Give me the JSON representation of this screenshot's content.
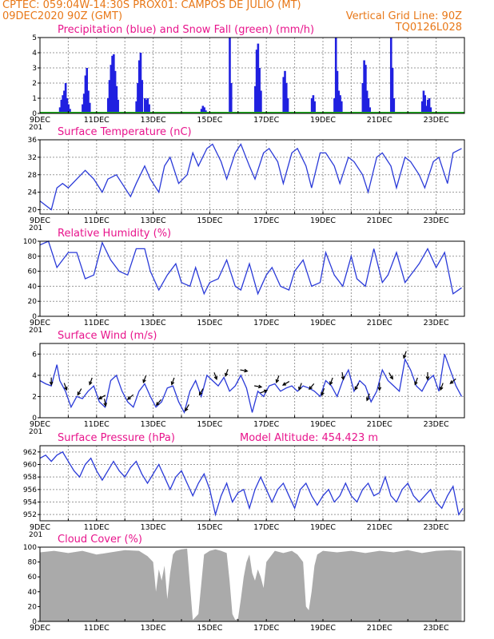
{
  "header": {
    "line1": "CPTEC:   059:04W-14:30S   PROX01: CAMPOS DE JULIO (MT)",
    "line2_left": "09DEC2020 90Z (GMT)",
    "line2_right": "Vertical Grid Line: 90Z",
    "line3_right": "TQ0126L028"
  },
  "colors": {
    "header": "#e87818",
    "panel_title": "#e8148c",
    "precip": "#2020e0",
    "snow": "#20b020",
    "line": "#2a3ad8",
    "cloud": "#aaaaaa"
  },
  "chart_data": [
    {
      "id": "precip",
      "type": "bar",
      "title": "Precipitation (blue) and Snow Fall (green) (mm/h)",
      "ylim": [
        0,
        5
      ],
      "yticks": [
        "0",
        "1",
        "2",
        "3",
        "4",
        "5"
      ],
      "x_labels": [
        "9DEC",
        "11DEC",
        "13DEC",
        "15DEC",
        "17DEC",
        "19DEC",
        "21DEC",
        "23DEC"
      ],
      "x_overlap_label": "201",
      "grid": true,
      "series": [
        {
          "color": "#2020e0",
          "values": [
            [
              9.7,
              0.4
            ],
            [
              9.75,
              0.9
            ],
            [
              9.8,
              1.2
            ],
            [
              9.85,
              1.5
            ],
            [
              9.9,
              2.0
            ],
            [
              9.95,
              1.0
            ],
            [
              10.0,
              0.6
            ],
            [
              10.05,
              0.3
            ],
            [
              10.5,
              0.6
            ],
            [
              10.55,
              1.3
            ],
            [
              10.6,
              2.5
            ],
            [
              10.65,
              3.0
            ],
            [
              10.7,
              1.5
            ],
            [
              10.75,
              0.7
            ],
            [
              11.4,
              1.0
            ],
            [
              11.45,
              2.2
            ],
            [
              11.5,
              3.2
            ],
            [
              11.55,
              3.8
            ],
            [
              11.6,
              3.9
            ],
            [
              11.65,
              2.8
            ],
            [
              11.7,
              1.8
            ],
            [
              11.75,
              0.9
            ],
            [
              12.4,
              0.8
            ],
            [
              12.45,
              2.0
            ],
            [
              12.5,
              3.5
            ],
            [
              12.55,
              4.0
            ],
            [
              12.6,
              2.2
            ],
            [
              12.7,
              1.0
            ],
            [
              12.75,
              0.9
            ],
            [
              12.8,
              1.0
            ],
            [
              12.85,
              0.6
            ],
            [
              14.6,
              0.1
            ],
            [
              14.7,
              0.3
            ],
            [
              14.75,
              0.5
            ],
            [
              14.8,
              0.4
            ],
            [
              14.85,
              0.2
            ],
            [
              15.7,
              5.0
            ],
            [
              15.75,
              2.0
            ],
            [
              16.6,
              1.8
            ],
            [
              16.65,
              4.2
            ],
            [
              16.7,
              4.6
            ],
            [
              16.75,
              3.0
            ],
            [
              16.8,
              1.5
            ],
            [
              17.6,
              2.4
            ],
            [
              17.65,
              2.8
            ],
            [
              17.7,
              2.0
            ],
            [
              17.75,
              1.0
            ],
            [
              18.6,
              1.0
            ],
            [
              18.65,
              1.2
            ],
            [
              18.7,
              0.8
            ],
            [
              19.4,
              1.0
            ],
            [
              19.45,
              5.0
            ],
            [
              19.5,
              2.8
            ],
            [
              19.55,
              1.5
            ],
            [
              19.6,
              1.2
            ],
            [
              19.65,
              0.8
            ],
            [
              20.4,
              2.0
            ],
            [
              20.45,
              3.5
            ],
            [
              20.5,
              3.2
            ],
            [
              20.55,
              1.5
            ],
            [
              20.6,
              1.0
            ],
            [
              20.65,
              0.4
            ],
            [
              21.4,
              5.0
            ],
            [
              21.45,
              3.0
            ],
            [
              21.5,
              1.0
            ],
            [
              22.5,
              0.8
            ],
            [
              22.55,
              1.5
            ],
            [
              22.6,
              1.2
            ],
            [
              22.65,
              0.5
            ],
            [
              22.7,
              0.9
            ],
            [
              22.75,
              1.0
            ],
            [
              22.8,
              0.4
            ]
          ]
        },
        {
          "color": "#20b020",
          "values": [
            [
              9.0,
              0.04
            ],
            [
              23.9,
              0.04
            ]
          ]
        }
      ]
    },
    {
      "id": "temp",
      "type": "line",
      "title": "Surface Temperature (nC)",
      "ylim": [
        19,
        36
      ],
      "yticks": [
        "20",
        "24",
        "28",
        "32",
        "36"
      ],
      "x_labels": [
        "9DEC",
        "11DEC",
        "13DEC",
        "15DEC",
        "17DEC",
        "19DEC",
        "21DEC",
        "23DEC"
      ],
      "x_overlap_label": "201",
      "grid": true,
      "x": [
        9.0,
        9.2,
        9.4,
        9.6,
        9.8,
        10.0,
        10.3,
        10.6,
        10.9,
        11.2,
        11.4,
        11.7,
        11.9,
        12.2,
        12.4,
        12.7,
        12.9,
        13.2,
        13.4,
        13.6,
        13.9,
        14.2,
        14.4,
        14.6,
        14.9,
        15.1,
        15.4,
        15.6,
        15.9,
        16.1,
        16.4,
        16.6,
        16.9,
        17.1,
        17.4,
        17.6,
        17.9,
        18.1,
        18.4,
        18.6,
        18.9,
        19.1,
        19.4,
        19.6,
        19.9,
        20.1,
        20.4,
        20.6,
        20.9,
        21.1,
        21.4,
        21.6,
        21.9,
        22.1,
        22.4,
        22.6,
        22.9,
        23.1,
        23.4,
        23.6,
        23.9
      ],
      "y": [
        22,
        21,
        20,
        25,
        26,
        25,
        27,
        29,
        27,
        24,
        27,
        28,
        26,
        23,
        26,
        30,
        27,
        24,
        30,
        32,
        26,
        28,
        33,
        30,
        34,
        35,
        31,
        27,
        33,
        35,
        30,
        27,
        33,
        34,
        31,
        26,
        33,
        34,
        30,
        25,
        33,
        33,
        30,
        26,
        32,
        31,
        28,
        24,
        32,
        33,
        30,
        25,
        32,
        31,
        28,
        25,
        31,
        32,
        26,
        33,
        34
      ]
    },
    {
      "id": "rh",
      "type": "line",
      "title": "Relative Humidity (%)",
      "ylim": [
        0,
        100
      ],
      "yticks": [
        "0",
        "20",
        "40",
        "60",
        "80",
        "100"
      ],
      "x_labels": [
        "9DEC",
        "11DEC",
        "13DEC",
        "15DEC",
        "17DEC",
        "19DEC",
        "21DEC",
        "23DEC"
      ],
      "x_overlap_label": "201",
      "grid": true,
      "x": [
        9.0,
        9.3,
        9.6,
        9.8,
        10.0,
        10.3,
        10.6,
        10.9,
        11.2,
        11.5,
        11.8,
        12.1,
        12.4,
        12.7,
        12.9,
        13.2,
        13.5,
        13.8,
        14.0,
        14.3,
        14.5,
        14.8,
        15.0,
        15.3,
        15.6,
        15.9,
        16.1,
        16.4,
        16.7,
        17.0,
        17.2,
        17.5,
        17.8,
        18.0,
        18.3,
        18.6,
        18.9,
        19.1,
        19.4,
        19.7,
        20.0,
        20.2,
        20.5,
        20.8,
        21.1,
        21.3,
        21.6,
        21.9,
        22.2,
        22.4,
        22.7,
        23.0,
        23.3,
        23.6,
        23.9
      ],
      "y": [
        95,
        100,
        65,
        75,
        85,
        85,
        50,
        55,
        98,
        75,
        60,
        55,
        90,
        90,
        60,
        35,
        55,
        70,
        45,
        40,
        65,
        30,
        45,
        50,
        75,
        40,
        35,
        70,
        30,
        55,
        65,
        40,
        35,
        60,
        75,
        40,
        45,
        85,
        55,
        40,
        80,
        50,
        40,
        90,
        45,
        55,
        85,
        45,
        60,
        70,
        90,
        65,
        85,
        30,
        38
      ]
    },
    {
      "id": "wind",
      "type": "line",
      "title": "Surface Wind (m/s)",
      "ylim": [
        0,
        7
      ],
      "yticks": [
        "0",
        "2",
        "4",
        "6"
      ],
      "x_labels": [
        "9DEC",
        "11DEC",
        "13DEC",
        "15DEC",
        "17DEC",
        "19DEC",
        "21DEC",
        "23DEC"
      ],
      "x_overlap_label": "201",
      "grid": true,
      "x": [
        9.0,
        9.2,
        9.4,
        9.6,
        9.7,
        9.9,
        10.1,
        10.3,
        10.5,
        10.7,
        10.9,
        11.1,
        11.3,
        11.5,
        11.7,
        11.9,
        12.1,
        12.3,
        12.5,
        12.7,
        12.9,
        13.1,
        13.3,
        13.5,
        13.7,
        13.9,
        14.1,
        14.3,
        14.5,
        14.7,
        14.9,
        15.1,
        15.3,
        15.5,
        15.7,
        15.9,
        16.1,
        16.3,
        16.5,
        16.7,
        16.9,
        17.1,
        17.3,
        17.5,
        17.7,
        17.9,
        18.1,
        18.3,
        18.5,
        18.7,
        18.9,
        19.1,
        19.3,
        19.5,
        19.7,
        19.9,
        20.1,
        20.3,
        20.5,
        20.7,
        20.9,
        21.1,
        21.3,
        21.5,
        21.7,
        21.9,
        22.1,
        22.3,
        22.5,
        22.7,
        22.9,
        23.1,
        23.3,
        23.5,
        23.7,
        23.9
      ],
      "y": [
        3.5,
        3.2,
        3.0,
        5.0,
        3.5,
        2.5,
        1.0,
        2.0,
        1.8,
        2.5,
        3.0,
        1.5,
        1.0,
        3.5,
        4.0,
        2.5,
        1.5,
        1.0,
        2.5,
        3.2,
        2.0,
        1.0,
        1.5,
        2.8,
        3.0,
        1.5,
        0.5,
        2.5,
        3.5,
        2.0,
        4.0,
        3.5,
        3.0,
        3.8,
        2.5,
        3.0,
        4.0,
        2.8,
        0.5,
        2.5,
        2.0,
        3.0,
        3.2,
        2.5,
        2.8,
        3.0,
        2.5,
        3.0,
        2.8,
        2.5,
        2.0,
        3.5,
        3.0,
        2.0,
        3.5,
        4.5,
        2.5,
        3.5,
        3.0,
        1.5,
        2.5,
        4.5,
        3.5,
        3.0,
        2.5,
        5.5,
        4.5,
        3.0,
        2.5,
        3.5,
        4.0,
        2.5,
        6.0,
        4.5,
        3.0,
        2.0
      ],
      "arrows": [
        [
          9.4,
          180
        ],
        [
          9.9,
          160
        ],
        [
          10.4,
          210
        ],
        [
          10.8,
          200
        ],
        [
          11.2,
          240
        ],
        [
          11.3,
          170
        ],
        [
          12.2,
          230
        ],
        [
          12.7,
          200
        ],
        [
          13.2,
          220
        ],
        [
          13.7,
          200
        ],
        [
          14.2,
          210
        ],
        [
          14.7,
          210
        ],
        [
          15.2,
          160
        ],
        [
          15.6,
          200
        ],
        [
          16.2,
          100
        ],
        [
          16.7,
          100
        ],
        [
          16.9,
          70
        ],
        [
          17.4,
          200
        ],
        [
          17.7,
          240
        ],
        [
          18.2,
          200
        ],
        [
          18.6,
          220
        ],
        [
          19.0,
          200
        ],
        [
          19.3,
          200
        ],
        [
          19.7,
          170
        ],
        [
          20.2,
          210
        ],
        [
          20.6,
          200
        ],
        [
          21.0,
          180
        ],
        [
          21.4,
          150
        ],
        [
          21.9,
          200
        ],
        [
          22.3,
          200
        ],
        [
          22.7,
          180
        ],
        [
          23.2,
          200
        ],
        [
          23.6,
          230
        ]
      ]
    },
    {
      "id": "pressure",
      "type": "line",
      "title": "Surface Pressure (hPa)",
      "annotation": "Model Altitude: 454.423 m",
      "ylim": [
        951,
        963
      ],
      "yticks": [
        "952",
        "954",
        "956",
        "958",
        "960",
        "962"
      ],
      "x_labels": [
        "9DEC",
        "11DEC",
        "13DEC",
        "15DEC",
        "17DEC",
        "19DEC",
        "21DEC",
        "23DEC"
      ],
      "x_overlap_label": "201",
      "grid": true,
      "x": [
        9.0,
        9.2,
        9.4,
        9.6,
        9.8,
        10.0,
        10.2,
        10.4,
        10.6,
        10.8,
        11.0,
        11.2,
        11.4,
        11.6,
        11.8,
        12.0,
        12.2,
        12.4,
        12.6,
        12.8,
        13.0,
        13.2,
        13.4,
        13.6,
        13.8,
        14.0,
        14.2,
        14.4,
        14.6,
        14.8,
        15.0,
        15.2,
        15.4,
        15.6,
        15.8,
        16.0,
        16.2,
        16.4,
        16.6,
        16.8,
        17.0,
        17.2,
        17.4,
        17.6,
        17.8,
        18.0,
        18.2,
        18.4,
        18.6,
        18.8,
        19.0,
        19.2,
        19.4,
        19.6,
        19.8,
        20.0,
        20.2,
        20.4,
        20.6,
        20.8,
        21.0,
        21.2,
        21.4,
        21.6,
        21.8,
        22.0,
        22.2,
        22.4,
        22.6,
        22.8,
        23.0,
        23.2,
        23.4,
        23.6,
        23.8,
        23.95
      ],
      "y": [
        961,
        961.5,
        960.5,
        961.5,
        962,
        960.5,
        959,
        958,
        960,
        961,
        959,
        957.5,
        959,
        960.5,
        959,
        958,
        959.5,
        960.5,
        958.5,
        957,
        958.5,
        960,
        958,
        956,
        958,
        959,
        957,
        955,
        957,
        958.5,
        956,
        952,
        955,
        957,
        954,
        955.5,
        956,
        953,
        956,
        958,
        956,
        954,
        956,
        957,
        955,
        953,
        956,
        957,
        955,
        953.5,
        955,
        956,
        954,
        955,
        957,
        955,
        954,
        956,
        957,
        955,
        955.5,
        958,
        955,
        954,
        956,
        957,
        955,
        954,
        955,
        956,
        954,
        953,
        955,
        956.5,
        952,
        953
      ]
    },
    {
      "id": "cloud",
      "type": "area",
      "title": "Cloud Cover (%)",
      "ylim": [
        0,
        100
      ],
      "yticks": [
        "0",
        "20",
        "40",
        "60",
        "80",
        "100"
      ],
      "x_labels": [
        "9DEC",
        "11DEC",
        "13DEC",
        "15DEC",
        "17DEC",
        "19DEC",
        "21DEC",
        "23DEC"
      ],
      "grid": false,
      "x": [
        9.0,
        9.5,
        10.0,
        10.5,
        11.0,
        11.5,
        12.0,
        12.5,
        12.8,
        13.0,
        13.1,
        13.2,
        13.3,
        13.4,
        13.5,
        13.6,
        13.7,
        13.8,
        14.0,
        14.2,
        14.4,
        14.6,
        14.8,
        15.0,
        15.2,
        15.4,
        15.6,
        15.7,
        15.8,
        15.9,
        16.0,
        16.1,
        16.2,
        16.3,
        16.4,
        16.5,
        16.6,
        16.7,
        16.8,
        16.9,
        17.0,
        17.3,
        17.6,
        17.9,
        18.1,
        18.3,
        18.4,
        18.5,
        18.6,
        18.7,
        18.8,
        19.0,
        19.5,
        20.0,
        20.5,
        21.0,
        21.5,
        22.0,
        22.5,
        23.0,
        23.5,
        23.9
      ],
      "y": [
        93,
        95,
        92,
        95,
        90,
        93,
        96,
        95,
        88,
        80,
        40,
        70,
        55,
        75,
        30,
        65,
        90,
        95,
        97,
        98,
        2,
        10,
        90,
        95,
        97,
        95,
        92,
        55,
        10,
        2,
        4,
        30,
        60,
        80,
        90,
        65,
        55,
        70,
        60,
        45,
        80,
        95,
        92,
        95,
        90,
        80,
        20,
        15,
        40,
        75,
        90,
        95,
        93,
        95,
        92,
        95,
        93,
        96,
        92,
        95,
        96,
        95
      ]
    }
  ]
}
